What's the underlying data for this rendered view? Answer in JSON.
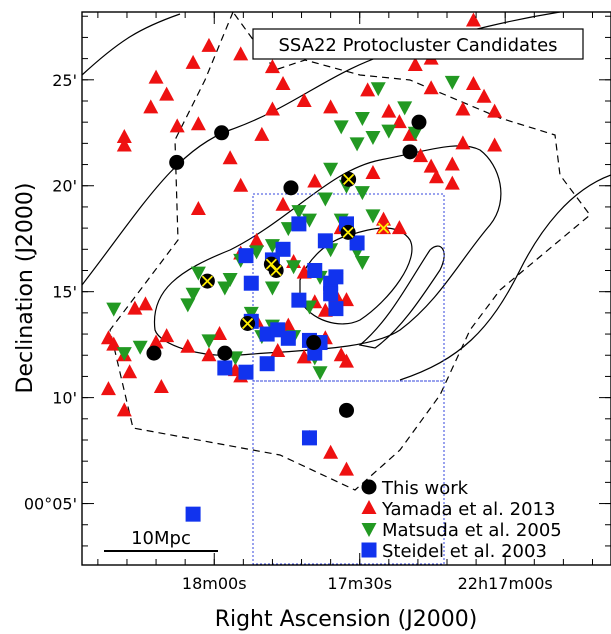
{
  "chart_data": {
    "type": "scatter",
    "title": "SSA22 Protocluster Candidates",
    "xlabel": "Right Ascension (J2000)",
    "ylabel": "Declination (J2000)",
    "x_ticks": [
      {
        "label": "18m00s",
        "pos": 0.25
      },
      {
        "label": "17m30s",
        "pos": 0.525
      },
      {
        "label": "22h17m00s",
        "pos": 0.8
      }
    ],
    "y_ticks": [
      {
        "label": "25'",
        "value": 25
      },
      {
        "label": "20'",
        "value": 20
      },
      {
        "label": "15'",
        "value": 15
      },
      {
        "label": "10'",
        "value": 10
      },
      {
        "label": "00°05'",
        "value": 5
      }
    ],
    "scale_bar_label": "10Mpc",
    "legend": [
      {
        "name": "This work",
        "marker": "circle",
        "color": "#000000"
      },
      {
        "name": "Yamada et al. 2013",
        "marker": "triangle-up",
        "color": "#ee1111"
      },
      {
        "name": "Matsuda et al. 2005",
        "marker": "triangle-down",
        "color": "#229922"
      },
      {
        "name": "Steidel et al. 2003",
        "marker": "square",
        "color": "#1133ee"
      }
    ],
    "series": [
      {
        "name": "This work",
        "marker": "circle",
        "color": "#000000",
        "points": [
          [
            0.179,
            21.1
          ],
          [
            0.264,
            22.5
          ],
          [
            0.395,
            19.9
          ],
          [
            0.504,
            20.3
          ],
          [
            0.637,
            23.0
          ],
          [
            0.62,
            21.6
          ],
          [
            0.237,
            15.5
          ],
          [
            0.503,
            17.8
          ],
          [
            0.358,
            16.3
          ],
          [
            0.367,
            16.0
          ],
          [
            0.313,
            13.5
          ],
          [
            0.438,
            12.6
          ],
          [
            0.136,
            12.1
          ],
          [
            0.27,
            12.1
          ],
          [
            0.5,
            9.4
          ]
        ]
      },
      {
        "name": "Yamada et al. 2013",
        "marker": "triangle-up",
        "color": "#ee1111",
        "points": [
          [
            0.14,
            25.1
          ],
          [
            0.21,
            25.8
          ],
          [
            0.16,
            24.3
          ],
          [
            0.13,
            23.7
          ],
          [
            0.18,
            22.8
          ],
          [
            0.08,
            22.3
          ],
          [
            0.08,
            21.9
          ],
          [
            0.22,
            22.9
          ],
          [
            0.28,
            21.3
          ],
          [
            0.34,
            22.4
          ],
          [
            0.36,
            23.6
          ],
          [
            0.24,
            26.6
          ],
          [
            0.3,
            26.2
          ],
          [
            0.36,
            25.6
          ],
          [
            0.38,
            24.8
          ],
          [
            0.42,
            24.0
          ],
          [
            0.47,
            23.7
          ],
          [
            0.54,
            24.5
          ],
          [
            0.58,
            23.5
          ],
          [
            0.6,
            23.0
          ],
          [
            0.62,
            22.4
          ],
          [
            0.64,
            21.4
          ],
          [
            0.66,
            20.9
          ],
          [
            0.67,
            20.4
          ],
          [
            0.7,
            21.0
          ],
          [
            0.72,
            23.6
          ],
          [
            0.74,
            24.8
          ],
          [
            0.76,
            24.2
          ],
          [
            0.78,
            23.5
          ],
          [
            0.72,
            22.0
          ],
          [
            0.7,
            20.1
          ],
          [
            0.78,
            21.9
          ],
          [
            0.66,
            24.6
          ],
          [
            0.74,
            27.8
          ],
          [
            0.66,
            26.0
          ],
          [
            0.63,
            25.7
          ],
          [
            0.3,
            20.0
          ],
          [
            0.38,
            19.1
          ],
          [
            0.44,
            20.2
          ],
          [
            0.49,
            18.0
          ],
          [
            0.55,
            20.6
          ],
          [
            0.57,
            18.4
          ],
          [
            0.6,
            18.0
          ],
          [
            0.22,
            18.9
          ],
          [
            0.3,
            16.8
          ],
          [
            0.33,
            17.4
          ],
          [
            0.4,
            16.4
          ],
          [
            0.42,
            15.9
          ],
          [
            0.44,
            14.5
          ],
          [
            0.46,
            14.1
          ],
          [
            0.47,
            15.2
          ],
          [
            0.48,
            14.8
          ],
          [
            0.5,
            14.6
          ],
          [
            0.05,
            12.8
          ],
          [
            0.06,
            12.5
          ],
          [
            0.08,
            12.0
          ],
          [
            0.09,
            11.2
          ],
          [
            0.1,
            14.2
          ],
          [
            0.12,
            14.4
          ],
          [
            0.14,
            12.6
          ],
          [
            0.16,
            12.9
          ],
          [
            0.2,
            12.4
          ],
          [
            0.24,
            12.0
          ],
          [
            0.26,
            13.0
          ],
          [
            0.29,
            11.3
          ],
          [
            0.3,
            11.0
          ],
          [
            0.33,
            13.6
          ],
          [
            0.37,
            12.2
          ],
          [
            0.39,
            13.4
          ],
          [
            0.42,
            11.9
          ],
          [
            0.46,
            12.8
          ],
          [
            0.49,
            12.0
          ],
          [
            0.5,
            11.7
          ],
          [
            0.05,
            10.4
          ],
          [
            0.08,
            9.4
          ],
          [
            0.15,
            10.5
          ],
          [
            0.43,
            8.1
          ],
          [
            0.47,
            7.4
          ],
          [
            0.5,
            6.6
          ],
          [
            0.57,
            18.0
          ]
        ]
      },
      {
        "name": "Matsuda et al. 2005",
        "marker": "triangle-down",
        "color": "#229922",
        "points": [
          [
            0.49,
            22.8
          ],
          [
            0.52,
            22.0
          ],
          [
            0.55,
            22.3
          ],
          [
            0.53,
            23.2
          ],
          [
            0.56,
            24.6
          ],
          [
            0.58,
            22.6
          ],
          [
            0.61,
            23.7
          ],
          [
            0.63,
            22.5
          ],
          [
            0.7,
            24.9
          ],
          [
            0.76,
            26.4
          ],
          [
            0.47,
            20.8
          ],
          [
            0.5,
            20.0
          ],
          [
            0.53,
            19.7
          ],
          [
            0.46,
            19.4
          ],
          [
            0.49,
            18.4
          ],
          [
            0.41,
            18.8
          ],
          [
            0.43,
            18.4
          ],
          [
            0.39,
            18.0
          ],
          [
            0.36,
            17.2
          ],
          [
            0.33,
            16.9
          ],
          [
            0.3,
            16.5
          ],
          [
            0.28,
            15.6
          ],
          [
            0.27,
            15.2
          ],
          [
            0.21,
            14.9
          ],
          [
            0.22,
            15.9
          ],
          [
            0.06,
            14.2
          ],
          [
            0.08,
            12.1
          ],
          [
            0.11,
            12.4
          ],
          [
            0.2,
            14.4
          ],
          [
            0.24,
            12.7
          ],
          [
            0.32,
            14.0
          ],
          [
            0.34,
            12.9
          ],
          [
            0.36,
            13.4
          ],
          [
            0.4,
            12.9
          ],
          [
            0.43,
            14.3
          ],
          [
            0.45,
            15.7
          ],
          [
            0.47,
            17.0
          ],
          [
            0.48,
            15.6
          ],
          [
            0.52,
            16.9
          ],
          [
            0.55,
            18.6
          ],
          [
            0.44,
            11.9
          ],
          [
            0.45,
            11.2
          ],
          [
            0.29,
            11.9
          ],
          [
            0.36,
            15.2
          ],
          [
            0.4,
            16.2
          ],
          [
            0.53,
            16.4
          ]
        ]
      },
      {
        "name": "Steidel et al. 2003",
        "marker": "square",
        "color": "#1133ee",
        "points": [
          [
            0.31,
            16.7
          ],
          [
            0.32,
            15.4
          ],
          [
            0.36,
            16.5
          ],
          [
            0.38,
            17.0
          ],
          [
            0.41,
            18.2
          ],
          [
            0.44,
            16.0
          ],
          [
            0.46,
            17.4
          ],
          [
            0.47,
            15.4
          ],
          [
            0.48,
            15.7
          ],
          [
            0.5,
            18.2
          ],
          [
            0.52,
            17.3
          ],
          [
            0.32,
            13.6
          ],
          [
            0.35,
            13.0
          ],
          [
            0.37,
            13.2
          ],
          [
            0.39,
            12.8
          ],
          [
            0.41,
            14.6
          ],
          [
            0.43,
            12.7
          ],
          [
            0.44,
            12.1
          ],
          [
            0.45,
            12.6
          ],
          [
            0.47,
            14.9
          ],
          [
            0.48,
            14.2
          ],
          [
            0.27,
            11.4
          ],
          [
            0.31,
            11.2
          ],
          [
            0.35,
            11.6
          ],
          [
            0.43,
            8.1
          ],
          [
            0.21,
            4.5
          ]
        ]
      }
    ]
  }
}
